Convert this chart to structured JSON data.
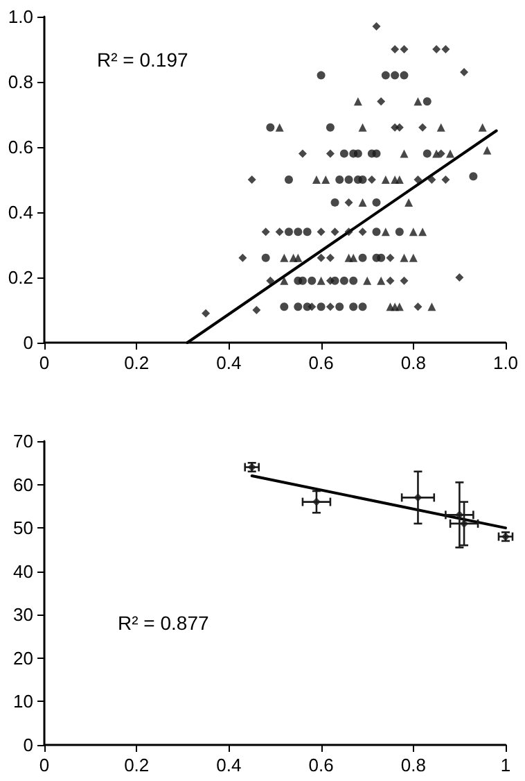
{
  "chart_data": [
    {
      "type": "scatter",
      "xlim": [
        0,
        1
      ],
      "ylim": [
        0,
        1
      ],
      "xticks": [
        0,
        0.2,
        0.4,
        0.6,
        0.8,
        {
          "value": 1,
          "label": "1.0"
        }
      ],
      "yticks": [
        0,
        0.2,
        0.4,
        0.6,
        0.8,
        {
          "value": 1,
          "label": "1.0"
        }
      ],
      "grid": false,
      "annotations": [
        "R² = 0.197"
      ],
      "series": [
        {
          "color": "#1a1a1a",
          "marker": "diamond",
          "x": [
            0.72,
            0.76,
            0.78,
            0.85,
            0.87,
            0.91,
            0.73,
            0.76,
            0.77,
            0.82,
            0.56,
            0.62,
            0.86,
            0.45,
            0.71,
            0.81,
            0.84,
            0.87,
            0.66,
            0.48,
            0.51,
            0.6,
            0.63,
            0.66,
            0.69,
            0.43,
            0.6,
            0.62,
            0.75,
            0.49,
            0.62,
            0.75,
            0.78,
            0.9,
            0.35,
            0.46,
            0.58,
            0.62,
            0.81
          ],
          "values": [
            0.97,
            0.9,
            0.9,
            0.9,
            0.9,
            0.83,
            0.74,
            0.66,
            0.66,
            0.66,
            0.58,
            0.58,
            0.58,
            0.5,
            0.5,
            0.5,
            0.5,
            0.5,
            0.43,
            0.34,
            0.34,
            0.34,
            0.34,
            0.34,
            0.34,
            0.26,
            0.26,
            0.26,
            0.26,
            0.19,
            0.19,
            0.19,
            0.19,
            0.2,
            0.09,
            0.1,
            0.11,
            0.11,
            0.11
          ]
        },
        {
          "color": "#1a1a1a",
          "marker": "circle",
          "x": [
            0.6,
            0.74,
            0.76,
            0.78,
            0.83,
            0.49,
            0.62,
            0.65,
            0.67,
            0.68,
            0.71,
            0.72,
            0.83,
            0.53,
            0.64,
            0.66,
            0.68,
            0.69,
            0.93,
            0.63,
            0.72,
            0.53,
            0.55,
            0.57,
            0.72,
            0.77,
            0.48,
            0.69,
            0.72,
            0.73,
            0.55,
            0.56,
            0.58,
            0.63,
            0.65,
            0.67,
            0.52,
            0.55,
            0.57,
            0.6,
            0.64,
            0.67,
            0.69
          ],
          "values": [
            0.82,
            0.82,
            0.82,
            0.82,
            0.74,
            0.66,
            0.66,
            0.58,
            0.58,
            0.58,
            0.58,
            0.58,
            0.58,
            0.5,
            0.5,
            0.5,
            0.5,
            0.5,
            0.51,
            0.43,
            0.43,
            0.34,
            0.34,
            0.34,
            0.34,
            0.34,
            0.26,
            0.26,
            0.26,
            0.26,
            0.19,
            0.19,
            0.19,
            0.19,
            0.19,
            0.19,
            0.11,
            0.11,
            0.11,
            0.11,
            0.11,
            0.11,
            0.11
          ]
        },
        {
          "color": "#1a1a1a",
          "marker": "triangle",
          "x": [
            0.68,
            0.81,
            0.51,
            0.69,
            0.86,
            0.95,
            0.78,
            0.85,
            0.88,
            0.96,
            0.59,
            0.61,
            0.74,
            0.76,
            0.77,
            0.69,
            0.79,
            0.74,
            0.8,
            0.82,
            0.52,
            0.54,
            0.55,
            0.66,
            0.67,
            0.78,
            0.8,
            0.52,
            0.6,
            0.7,
            0.73,
            0.75,
            0.76,
            0.77,
            0.84
          ],
          "values": [
            0.74,
            0.74,
            0.66,
            0.66,
            0.66,
            0.66,
            0.58,
            0.58,
            0.58,
            0.59,
            0.5,
            0.5,
            0.5,
            0.5,
            0.5,
            0.43,
            0.43,
            0.34,
            0.34,
            0.34,
            0.26,
            0.26,
            0.26,
            0.26,
            0.26,
            0.26,
            0.26,
            0.19,
            0.19,
            0.19,
            0.19,
            0.11,
            0.11,
            0.11,
            0.11
          ]
        },
        {
          "type": "line",
          "color": "#000000",
          "marker": "none",
          "x": [
            0.31,
            0.98
          ],
          "values": [
            0,
            0.65
          ]
        }
      ]
    },
    {
      "type": "scatter",
      "xlim": [
        0,
        1
      ],
      "ylim": [
        0,
        70
      ],
      "xticks": [
        0,
        0.2,
        0.4,
        0.6,
        0.8,
        1
      ],
      "yticks": [
        0,
        10,
        20,
        30,
        40,
        50,
        60,
        70
      ],
      "grid": false,
      "annotations": [
        "R² = 0.877"
      ],
      "series": [
        {
          "color": "#1a1a1a",
          "marker": "diamond",
          "x": [
            0.45,
            0.59,
            0.81,
            0.9,
            0.91,
            1.0
          ],
          "values": [
            64,
            56,
            57,
            53,
            51,
            48
          ],
          "errors": [
            1,
            2.5,
            6,
            7.5,
            5,
            1
          ],
          "xerrors": [
            0.015,
            0.03,
            0.035,
            0.03,
            0.03,
            0.015
          ]
        },
        {
          "type": "line",
          "color": "#000000",
          "marker": "none",
          "x": [
            0.45,
            1.0
          ],
          "values": [
            62,
            50
          ]
        }
      ]
    }
  ]
}
